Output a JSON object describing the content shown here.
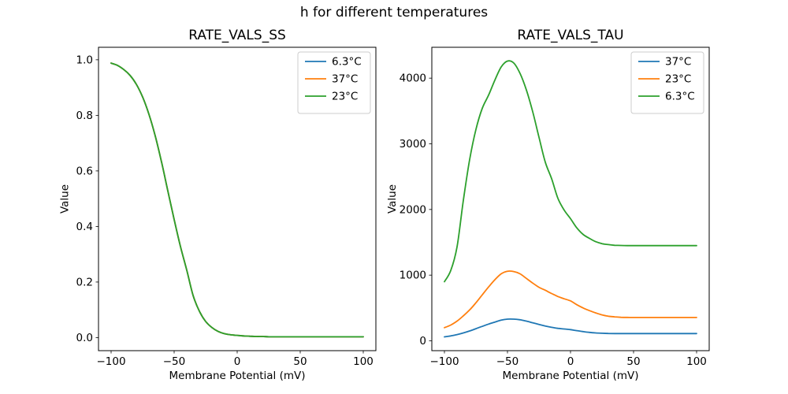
{
  "figure": {
    "title": "h for different temperatures",
    "background": "#ffffff"
  },
  "palette": {
    "blue": "#1f77b4",
    "orange": "#ff7f0e",
    "green": "#2ca02c",
    "axis": "#000000",
    "text": "#000000",
    "legend_border": "#cccccc"
  },
  "chart_data": [
    {
      "type": "line",
      "title": "RATE_VALS_SS",
      "xlabel": "Membrane Potential (mV)",
      "ylabel": "Value",
      "xlim": [
        -110,
        110
      ],
      "ylim": [
        -0.047,
        1.045
      ],
      "xticks": [
        -100,
        -50,
        0,
        50,
        100
      ],
      "xtick_labels": [
        "−100",
        "−50",
        "0",
        "50",
        "100"
      ],
      "yticks": [
        0.0,
        0.2,
        0.4,
        0.6,
        0.8,
        1.0
      ],
      "ytick_labels": [
        "0.0",
        "0.2",
        "0.4",
        "0.6",
        "0.8",
        "1.0"
      ],
      "grid": false,
      "legend": {
        "position": "upper right",
        "entries": [
          {
            "label": "6.3°C",
            "color": "#1f77b4"
          },
          {
            "label": "37°C",
            "color": "#ff7f0e"
          },
          {
            "label": "23°C",
            "color": "#2ca02c"
          }
        ]
      },
      "x": [
        -100,
        -95,
        -90,
        -85,
        -80,
        -75,
        -70,
        -65,
        -60,
        -55,
        -50,
        -45,
        -40,
        -35,
        -30,
        -25,
        -20,
        -15,
        -10,
        -5,
        0,
        5,
        10,
        15,
        20,
        25,
        30,
        35,
        40,
        45,
        50,
        55,
        60,
        65,
        70,
        75,
        80,
        85,
        90,
        95,
        100
      ],
      "series": [
        {
          "name": "6.3°C",
          "color": "#1f77b4",
          "values": [
            0.988,
            0.98,
            0.965,
            0.944,
            0.912,
            0.866,
            0.804,
            0.726,
            0.632,
            0.528,
            0.425,
            0.328,
            0.243,
            0.152,
            0.095,
            0.058,
            0.036,
            0.022,
            0.014,
            0.01,
            0.008,
            0.006,
            0.005,
            0.004,
            0.004,
            0.003,
            0.003,
            0.003,
            0.003,
            0.003,
            0.003,
            0.003,
            0.003,
            0.003,
            0.003,
            0.003,
            0.003,
            0.003,
            0.003,
            0.003,
            0.003
          ]
        },
        {
          "name": "37°C",
          "color": "#ff7f0e",
          "values": [
            0.988,
            0.98,
            0.965,
            0.944,
            0.912,
            0.866,
            0.804,
            0.726,
            0.632,
            0.528,
            0.425,
            0.328,
            0.243,
            0.152,
            0.095,
            0.058,
            0.036,
            0.022,
            0.014,
            0.01,
            0.008,
            0.006,
            0.005,
            0.004,
            0.004,
            0.003,
            0.003,
            0.003,
            0.003,
            0.003,
            0.003,
            0.003,
            0.003,
            0.003,
            0.003,
            0.003,
            0.003,
            0.003,
            0.003,
            0.003,
            0.003
          ]
        },
        {
          "name": "23°C",
          "color": "#2ca02c",
          "values": [
            0.988,
            0.98,
            0.965,
            0.944,
            0.912,
            0.866,
            0.804,
            0.726,
            0.632,
            0.528,
            0.425,
            0.328,
            0.243,
            0.152,
            0.095,
            0.058,
            0.036,
            0.022,
            0.014,
            0.01,
            0.008,
            0.006,
            0.005,
            0.004,
            0.004,
            0.003,
            0.003,
            0.003,
            0.003,
            0.003,
            0.003,
            0.003,
            0.003,
            0.003,
            0.003,
            0.003,
            0.003,
            0.003,
            0.003,
            0.003,
            0.003
          ]
        }
      ]
    },
    {
      "type": "line",
      "title": "RATE_VALS_TAU",
      "xlabel": "Membrane Potential (mV)",
      "ylabel": "Value",
      "xlim": [
        -110,
        110
      ],
      "ylim": [
        -150,
        4470
      ],
      "xticks": [
        -100,
        -50,
        0,
        50,
        100
      ],
      "xtick_labels": [
        "−100",
        "−50",
        "0",
        "50",
        "100"
      ],
      "yticks": [
        0,
        1000,
        2000,
        3000,
        4000
      ],
      "ytick_labels": [
        "0",
        "1000",
        "2000",
        "3000",
        "4000"
      ],
      "grid": false,
      "legend": {
        "position": "upper right",
        "entries": [
          {
            "label": "37°C",
            "color": "#1f77b4"
          },
          {
            "label": "23°C",
            "color": "#ff7f0e"
          },
          {
            "label": "6.3°C",
            "color": "#2ca02c"
          }
        ]
      },
      "x": [
        -100,
        -95,
        -90,
        -85,
        -80,
        -75,
        -70,
        -65,
        -60,
        -55,
        -50,
        -45,
        -40,
        -35,
        -30,
        -25,
        -20,
        -15,
        -10,
        -5,
        0,
        5,
        10,
        15,
        20,
        25,
        30,
        35,
        40,
        45,
        50,
        55,
        60,
        65,
        70,
        75,
        80,
        85,
        90,
        95,
        100
      ],
      "series": [
        {
          "name": "37°C",
          "color": "#1f77b4",
          "values": [
            60,
            75,
            95,
            120,
            150,
            185,
            220,
            255,
            285,
            315,
            330,
            330,
            320,
            300,
            275,
            250,
            225,
            205,
            190,
            180,
            170,
            155,
            140,
            128,
            120,
            115,
            112,
            111,
            110,
            110,
            110,
            110,
            110,
            110,
            110,
            110,
            110,
            110,
            110,
            110,
            110
          ]
        },
        {
          "name": "23°C",
          "color": "#ff7f0e",
          "values": [
            200,
            240,
            300,
            380,
            470,
            580,
            700,
            820,
            930,
            1020,
            1060,
            1055,
            1020,
            950,
            880,
            815,
            770,
            720,
            675,
            640,
            608,
            550,
            500,
            460,
            425,
            395,
            375,
            365,
            358,
            356,
            355,
            355,
            355,
            355,
            355,
            355,
            355,
            355,
            355,
            355,
            355
          ]
        },
        {
          "name": "6.3°C",
          "color": "#2ca02c",
          "values": [
            900,
            1070,
            1430,
            2140,
            2760,
            3220,
            3540,
            3740,
            3970,
            4170,
            4260,
            4230,
            4070,
            3820,
            3490,
            3100,
            2720,
            2470,
            2170,
            1990,
            1860,
            1720,
            1620,
            1560,
            1510,
            1480,
            1465,
            1455,
            1452,
            1450,
            1450,
            1450,
            1450,
            1450,
            1450,
            1450,
            1450,
            1450,
            1450,
            1450,
            1450
          ]
        }
      ]
    }
  ]
}
